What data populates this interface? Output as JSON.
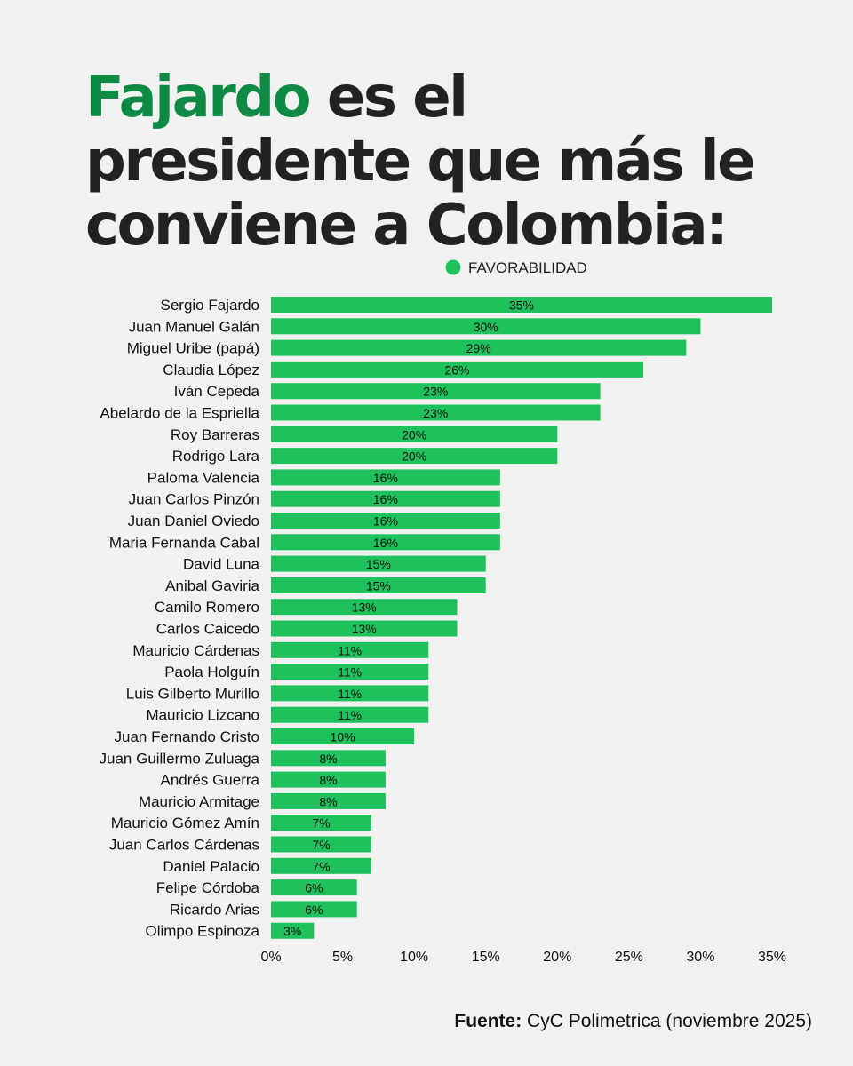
{
  "headline": {
    "accent": "Fajardo",
    "rest": " es el presidente que más le conviene a Colombia:"
  },
  "colors": {
    "bar": "#1ec15c",
    "accent": "#0f8a45",
    "text": "#222222"
  },
  "chart_data": {
    "type": "bar",
    "orientation": "horizontal",
    "legend": {
      "position": "top",
      "entries": [
        "FAVORABILIDAD"
      ]
    },
    "categories": [
      "Sergio Fajardo",
      "Juan Manuel Galán",
      "Miguel Uribe (papá)",
      "Claudia López",
      "Iván Cepeda",
      "Abelardo de la Espriella",
      "Roy Barreras",
      "Rodrigo Lara",
      "Paloma Valencia",
      "Juan Carlos Pinzón",
      "Juan Daniel Oviedo",
      "Maria Fernanda Cabal",
      "David Luna",
      "Anibal Gaviria",
      "Camilo Romero",
      "Carlos Caicedo",
      "Mauricio Cárdenas",
      "Paola Holguín",
      "Luis Gilberto Murillo",
      "Mauricio Lizcano",
      "Juan Fernando Cristo",
      "Juan Guillermo Zuluaga",
      "Andrés Guerra",
      "Mauricio Armitage",
      "Mauricio Gómez Amín",
      "Juan Carlos Cárdenas",
      "Daniel Palacio",
      "Felipe Córdoba",
      "Ricardo Arias",
      "Olimpo Espinoza"
    ],
    "series": [
      {
        "name": "FAVORABILIDAD",
        "values": [
          35,
          30,
          29,
          26,
          23,
          23,
          20,
          20,
          16,
          16,
          16,
          16,
          15,
          15,
          13,
          13,
          11,
          11,
          11,
          11,
          10,
          8,
          8,
          8,
          7,
          7,
          7,
          6,
          6,
          3
        ]
      }
    ],
    "value_suffix": "%",
    "xlim": [
      0,
      35
    ],
    "xticks": [
      "0%",
      "5%",
      "10%",
      "15%",
      "20%",
      "25%",
      "30%",
      "35%"
    ],
    "xtick_values": [
      0,
      5,
      10,
      15,
      20,
      25,
      30,
      35
    ],
    "grid": false
  },
  "source": {
    "label": "Fuente:",
    "text": " CyC Polimetrica (noviembre 2025)"
  }
}
